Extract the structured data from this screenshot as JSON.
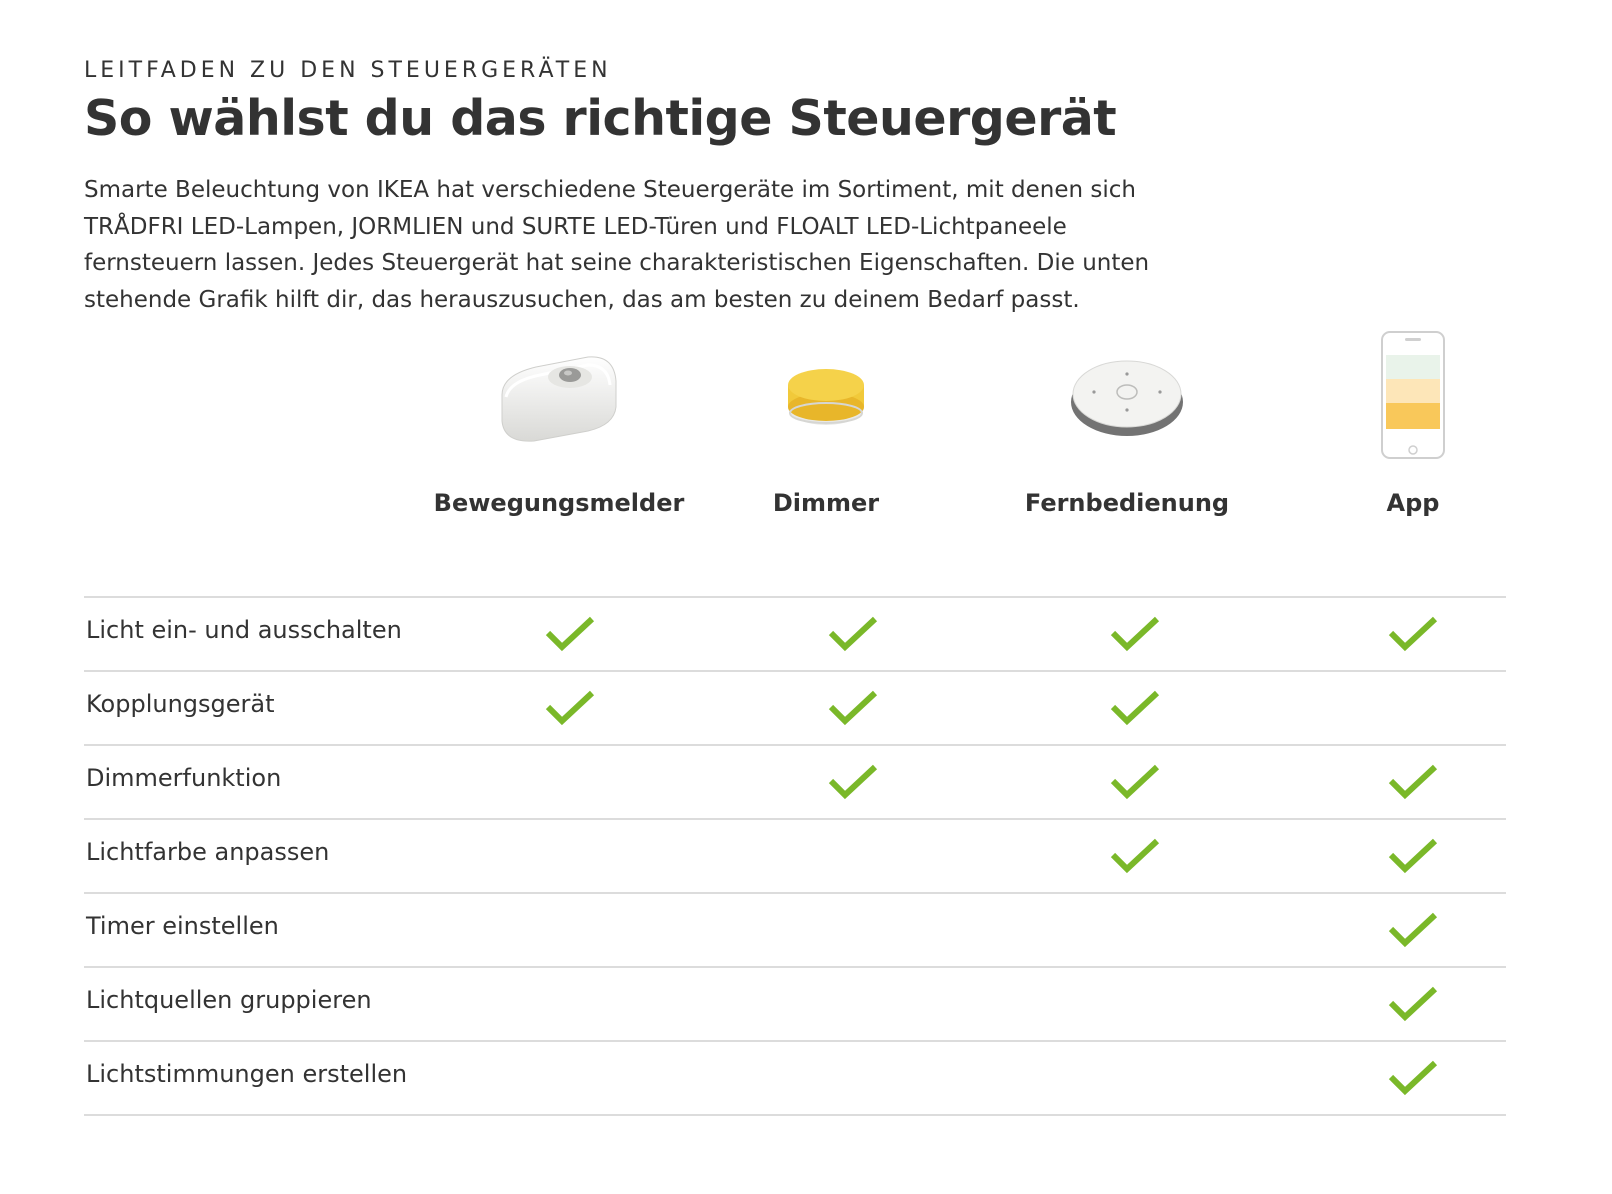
{
  "header": {
    "eyebrow": "LEITFADEN ZU DEN STEUERGERÄTEN",
    "title": "So wählst du das richtige Steuergerät",
    "intro": "Smarte Beleuchtung von IKEA hat verschiedene Steuergeräte im Sortiment, mit denen sich TRÅDFRI LED-Lampen, JORMLIEN und SURTE LED-Türen und FLOALT LED-Lichtpaneele fernsteuern lassen. Jedes Steuergerät hat seine charakteristischen Eigenschaften. Die unten stehende Grafik hilft dir, das herauszusuchen, das am besten zu deinem Bedarf passt."
  },
  "products": [
    {
      "label": "Bewegungsmelder",
      "icon": "motion-sensor-icon"
    },
    {
      "label": "Dimmer",
      "icon": "dimmer-icon"
    },
    {
      "label": "Fernbedienung",
      "icon": "remote-control-icon"
    },
    {
      "label": "App",
      "icon": "smartphone-app-icon"
    }
  ],
  "colors": {
    "check": "#7ab829",
    "divider": "#dcdcdc",
    "text": "#333333"
  },
  "features": [
    {
      "label": "Licht ein- und ausschalten",
      "support": [
        true,
        true,
        true,
        true
      ]
    },
    {
      "label": "Kopplungsgerät",
      "support": [
        true,
        true,
        true,
        false
      ]
    },
    {
      "label": "Dimmerfunktion",
      "support": [
        false,
        true,
        true,
        true
      ]
    },
    {
      "label": "Lichtfarbe anpassen",
      "support": [
        false,
        false,
        true,
        true
      ]
    },
    {
      "label": "Timer einstellen",
      "support": [
        false,
        false,
        false,
        true
      ]
    },
    {
      "label": "Lichtquellen gruppieren",
      "support": [
        false,
        false,
        false,
        true
      ]
    },
    {
      "label": "Lichtstimmungen erstellen",
      "support": [
        false,
        false,
        false,
        true
      ]
    }
  ]
}
